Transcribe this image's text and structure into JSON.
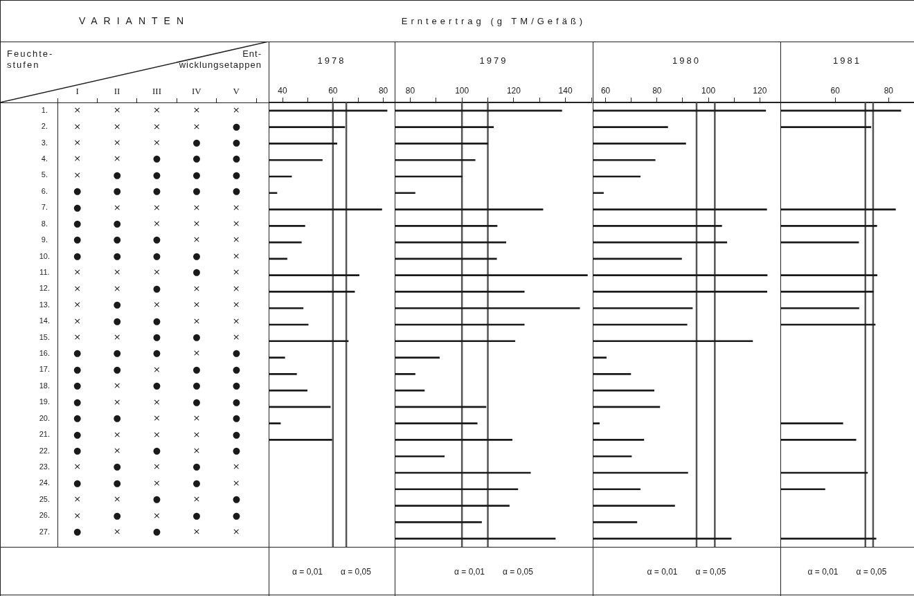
{
  "chart_data": [
    {
      "type": "heatmap",
      "title": "VARIANTEN",
      "ylabel": "Feuchte-\nstufen",
      "xlabel": "Ent-\nwicklungsetappen",
      "categories": [
        "I",
        "II",
        "III",
        "IV",
        "V"
      ],
      "y_categories": [
        "1.",
        "2.",
        "3.",
        "4.",
        "5.",
        "6.",
        "7.",
        "8.",
        "9.",
        "10.",
        "11.",
        "12.",
        "13.",
        "14.",
        "15.",
        "16.",
        "17.",
        "18.",
        "19.",
        "20.",
        "21.",
        "22.",
        "23.",
        "24.",
        "25.",
        "26.",
        "27."
      ],
      "cells": [
        [
          null,
          null,
          null,
          null,
          null
        ],
        [
          null,
          null,
          null,
          null,
          null
        ],
        [
          null,
          null,
          null,
          null,
          null
        ],
        [
          null,
          null,
          null,
          null,
          null
        ],
        [
          null,
          null,
          null,
          null,
          null
        ],
        [
          null,
          null,
          null,
          null,
          null
        ],
        [
          null,
          null,
          null,
          null,
          null
        ],
        [
          null,
          null,
          null,
          null,
          null
        ],
        [
          null,
          null,
          null,
          null,
          null
        ],
        [
          null,
          null,
          null,
          null,
          null
        ],
        [
          null,
          null,
          null,
          null,
          null
        ],
        [
          null,
          null,
          null,
          null,
          null
        ],
        [
          null,
          null,
          null,
          null,
          null
        ],
        [
          null,
          null,
          null,
          null,
          null
        ],
        [
          null,
          null,
          null,
          null,
          null
        ],
        [
          null,
          null,
          null,
          null,
          null
        ],
        [
          null,
          null,
          null,
          null,
          null
        ],
        [
          null,
          null,
          null,
          null,
          null
        ],
        [
          null,
          null,
          null,
          null,
          null
        ],
        [
          null,
          null,
          null,
          null,
          null
        ],
        [
          null,
          null,
          null,
          null,
          null
        ],
        [
          null,
          null,
          null,
          null,
          null
        ],
        [
          null,
          null,
          null,
          null,
          null
        ],
        [
          null,
          null,
          null,
          null,
          null
        ],
        [
          null,
          null,
          null,
          null,
          null
        ],
        [
          null,
          null,
          null,
          null,
          null
        ],
        [
          null,
          null,
          null,
          null,
          null
        ]
      ],
      "cell_labels": [
        [
          "×",
          "×",
          "×",
          "×",
          "×"
        ],
        [
          "×",
          "×",
          "×",
          "×",
          "●"
        ],
        [
          "×",
          "×",
          "×",
          "●",
          "●"
        ],
        [
          "×",
          "×",
          "●",
          "●",
          "●"
        ],
        [
          "×",
          "●",
          "●",
          "●",
          "●"
        ],
        [
          "●",
          "●",
          "●",
          "●",
          "●"
        ],
        [
          "●",
          "×",
          "×",
          "×",
          "×"
        ],
        [
          "●",
          "●",
          "×",
          "×",
          "×"
        ],
        [
          "●",
          "●",
          "●",
          "×",
          "×"
        ],
        [
          "●",
          "●",
          "●",
          "●",
          "×"
        ],
        [
          "×",
          "×",
          "×",
          "●",
          "×"
        ],
        [
          "×",
          "×",
          "●",
          "×",
          "×"
        ],
        [
          "×",
          "●",
          "×",
          "×",
          "×"
        ],
        [
          "×",
          "●",
          "●",
          "×",
          "×"
        ],
        [
          "×",
          "×",
          "●",
          "●",
          "×"
        ],
        [
          "●",
          "●",
          "●",
          "×",
          "●"
        ],
        [
          "●",
          "●",
          "×",
          "●",
          "●"
        ],
        [
          "●",
          "×",
          "●",
          "●",
          "●"
        ],
        [
          "●",
          "×",
          "×",
          "●",
          "●"
        ],
        [
          "●",
          "●",
          "×",
          "×",
          "●"
        ],
        [
          "●",
          "×",
          "×",
          "×",
          "●"
        ],
        [
          "●",
          "×",
          "●",
          "×",
          "●"
        ],
        [
          "×",
          "●",
          "×",
          "●",
          "×"
        ],
        [
          "●",
          "●",
          "×",
          "●",
          "×"
        ],
        [
          "×",
          "×",
          "●",
          "×",
          "●"
        ],
        [
          "×",
          "●",
          "×",
          "●",
          "●"
        ],
        [
          "●",
          "×",
          "●",
          "×",
          "×"
        ]
      ]
    },
    {
      "type": "bar",
      "orientation": "horizontal",
      "xlabel": "1978",
      "tick_labels": "x",
      "categories": [
        "1.",
        "2.",
        "3.",
        "4.",
        "5.",
        "6.",
        "7.",
        "8.",
        "9.",
        "10.",
        "11.",
        "12.",
        "13.",
        "14.",
        "15.",
        "16.",
        "17.",
        "18.",
        "19.",
        "20.",
        "21.",
        "22.",
        "23.",
        "24.",
        "25.",
        "26.",
        "27."
      ],
      "values": [
        81.5,
        64.7,
        61.6,
        55.8,
        43.6,
        37.8,
        79.4,
        48.9,
        47.5,
        41.8,
        70.4,
        68.6,
        48.2,
        50.2,
        66.1,
        40.9,
        45.6,
        49.8,
        59.0,
        39.2,
        59.6,
        null,
        null,
        null,
        null,
        null,
        null
      ],
      "color": "#1a1a1a",
      "xlim": [
        34.5,
        84.5
      ],
      "xticks": [
        40,
        {
          "value": 50,
          "label": null
        },
        60,
        {
          "value": 70,
          "label": null
        },
        80
      ],
      "ref_lines": [
        {
          "axis": "x",
          "value": 60,
          "color": "#555555"
        },
        {
          "axis": "x",
          "value": 65.3,
          "color": "#555555"
        }
      ],
      "annotations": [
        "α = 0,01",
        "α = 0,05"
      ]
    },
    {
      "type": "bar",
      "orientation": "horizontal",
      "title": "Ernteertrag (g TM/Gefäß)",
      "xlabel": "1979",
      "tick_labels": "x",
      "categories": [
        "1.",
        "2.",
        "3.",
        "4.",
        "5.",
        "6.",
        "7.",
        "8.",
        "9.",
        "10.",
        "11.",
        "12.",
        "13.",
        "14.",
        "15.",
        "16.",
        "17.",
        "18.",
        "19.",
        "20.",
        "21.",
        "22.",
        "23.",
        "24.",
        "25.",
        "26.",
        "27."
      ],
      "values": [
        138.6,
        112.2,
        110.0,
        105.1,
        100.1,
        81.9,
        131.3,
        113.6,
        117.0,
        113.4,
        148.5,
        124.1,
        145.5,
        124.1,
        120.5,
        91.3,
        81.9,
        85.5,
        109.3,
        105.9,
        119.4,
        93.2,
        126.5,
        121.6,
        118.3,
        107.6,
        136.1
      ],
      "color": "#1a1a1a",
      "xlim": [
        74,
        150
      ],
      "xticks": [
        80,
        {
          "value": 90,
          "label": null
        },
        100,
        {
          "value": 110,
          "label": null
        },
        120,
        {
          "value": 130,
          "label": null
        },
        140,
        {
          "value": 150,
          "label": null
        }
      ],
      "ref_lines": [
        {
          "axis": "x",
          "value": 100,
          "color": "#555555"
        },
        {
          "axis": "x",
          "value": 110,
          "color": "#555555"
        }
      ],
      "annotations": [
        "α = 0,01",
        "α = 0,05"
      ]
    },
    {
      "type": "bar",
      "orientation": "horizontal",
      "xlabel": "1980",
      "tick_labels": "x",
      "categories": [
        "1.",
        "2.",
        "3.",
        "4.",
        "5.",
        "6.",
        "7.",
        "8.",
        "9.",
        "10.",
        "11.",
        "12.",
        "13.",
        "14.",
        "15.",
        "16.",
        "17.",
        "18.",
        "19.",
        "20.",
        "21.",
        "22.",
        "23.",
        "24.",
        "25.",
        "26.",
        "27."
      ],
      "values": [
        122.3,
        84.2,
        91.2,
        79.3,
        73.5,
        59.2,
        122.7,
        105.2,
        107.2,
        89.6,
        122.9,
        122.8,
        93.8,
        91.7,
        117.2,
        60.3,
        69.8,
        78.9,
        81.1,
        57.6,
        74.9,
        70.1,
        92.0,
        73.5,
        86.9,
        72.2,
        108.9
      ],
      "color": "#1a1a1a",
      "xlim": [
        55,
        128
      ],
      "xticks": [
        60,
        {
          "value": 70,
          "label": null
        },
        80,
        {
          "value": 90,
          "label": null
        },
        100,
        {
          "value": 110,
          "label": null
        },
        120
      ],
      "ref_lines": [
        {
          "axis": "x",
          "value": 95.4,
          "color": "#555555"
        },
        {
          "axis": "x",
          "value": 102.5,
          "color": "#555555"
        }
      ],
      "annotations": [
        "α = 0,01",
        "α = 0,05"
      ]
    },
    {
      "type": "bar",
      "orientation": "horizontal",
      "xlabel": "1981",
      "tick_labels": "x",
      "categories": [
        "1.",
        "2.",
        "3.",
        "4.",
        "5.",
        "6.",
        "7.",
        "8.",
        "9.",
        "10.",
        "11.",
        "12.",
        "13.",
        "14.",
        "15.",
        "16.",
        "17.",
        "18.",
        "19.",
        "20.",
        "21.",
        "22.",
        "23.",
        "24.",
        "25.",
        "26.",
        "27."
      ],
      "values": [
        84.6,
        73.4,
        null,
        null,
        null,
        null,
        82.6,
        75.6,
        68.8,
        null,
        75.7,
        74.3,
        68.9,
        75.0,
        null,
        null,
        null,
        null,
        null,
        62.9,
        67.8,
        null,
        72.1,
        56.2,
        null,
        null,
        75.3
      ],
      "color": "#1a1a1a",
      "xlim": [
        39.5,
        89.5
      ],
      "xticks": [
        60,
        80
      ],
      "ref_lines": [
        {
          "axis": "x",
          "value": 71.3,
          "color": "#555555"
        },
        {
          "axis": "x",
          "value": 74.2,
          "color": "#555555"
        }
      ],
      "annotations": [
        "α = 0,01",
        "α = 0,05"
      ]
    }
  ]
}
